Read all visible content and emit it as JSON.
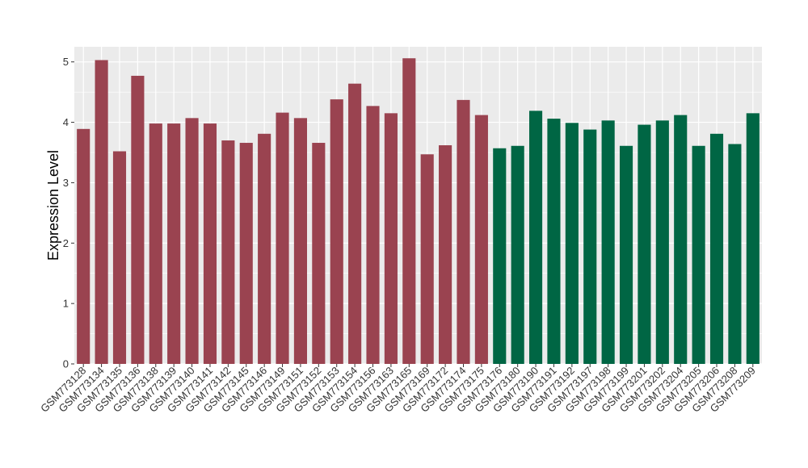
{
  "chart_data": {
    "type": "bar",
    "title": "",
    "xlabel": "",
    "ylabel": "Expression Level",
    "ylim": [
      0,
      5.25
    ],
    "yticks": [
      0,
      1,
      2,
      3,
      4,
      5
    ],
    "grid": true,
    "legend": "none",
    "colors": {
      "group1": "#9a4350",
      "group2": "#006644",
      "panel": "#ebebeb",
      "grid": "#ffffff"
    },
    "categories": [
      "GSM773128",
      "GSM773134",
      "GSM773135",
      "GSM773136",
      "GSM773138",
      "GSM773139",
      "GSM773140",
      "GSM773141",
      "GSM773142",
      "GSM773145",
      "GSM773146",
      "GSM773149",
      "GSM773151",
      "GSM773152",
      "GSM773153",
      "GSM773154",
      "GSM773156",
      "GSM773163",
      "GSM773165",
      "GSM773169",
      "GSM773172",
      "GSM773174",
      "GSM773175",
      "GSM773176",
      "GSM773180",
      "GSM773190",
      "GSM773191",
      "GSM773192",
      "GSM773197",
      "GSM773198",
      "GSM773199",
      "GSM773201",
      "GSM773202",
      "GSM773204",
      "GSM773205",
      "GSM773206",
      "GSM773208",
      "GSM773209"
    ],
    "values": [
      3.89,
      5.03,
      3.52,
      4.77,
      3.98,
      3.98,
      4.07,
      3.98,
      3.7,
      3.66,
      3.81,
      4.16,
      4.07,
      3.66,
      4.38,
      4.64,
      4.27,
      4.15,
      5.06,
      3.47,
      3.62,
      4.37,
      4.12,
      3.57,
      3.61,
      4.19,
      4.06,
      3.99,
      3.88,
      4.03,
      3.61,
      3.96,
      4.03,
      4.12,
      3.61,
      3.81,
      3.64,
      4.15
    ],
    "groups": [
      1,
      1,
      1,
      1,
      1,
      1,
      1,
      1,
      1,
      1,
      1,
      1,
      1,
      1,
      1,
      1,
      1,
      1,
      1,
      1,
      1,
      1,
      1,
      2,
      2,
      2,
      2,
      2,
      2,
      2,
      2,
      2,
      2,
      2,
      2,
      2,
      2,
      2
    ]
  }
}
